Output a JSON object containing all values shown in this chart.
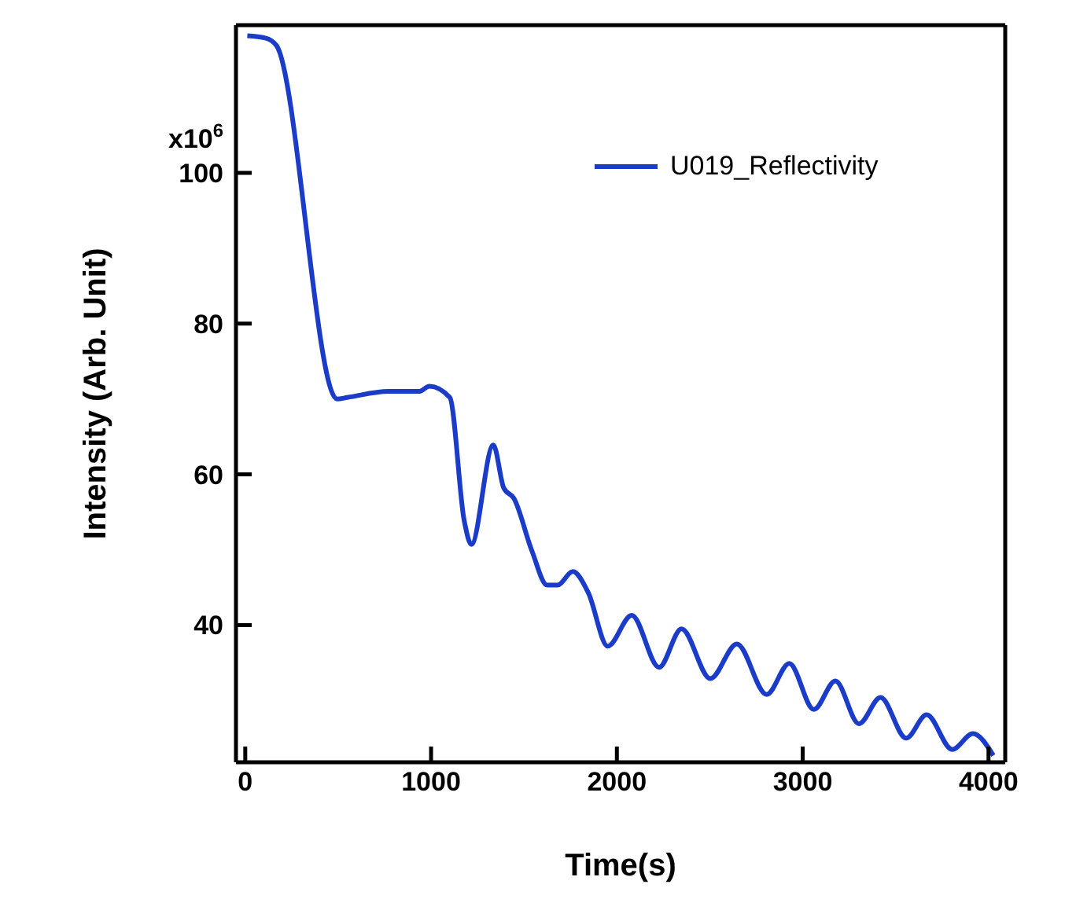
{
  "chart_data": {
    "type": "line",
    "xlabel": "Time(s)",
    "ylabel": "Intensity (Arb. Unit)",
    "annotations": [
      "x10$^{6}$"
    ],
    "x": [
      11,
      108,
      168,
      494,
      549,
      770,
      935,
      991,
      1101,
      1178,
      1217,
      1335,
      1391,
      1446,
      1542,
      1625,
      1680,
      1763,
      1846,
      1951,
      2080,
      2227,
      2348,
      2503,
      2646,
      2806,
      2928,
      3060,
      3176,
      3303,
      3419,
      3557,
      3667,
      3805,
      3916,
      4026
    ],
    "series": [
      {
        "name": "U019_Reflectivity",
        "color": "#1a3cc8",
        "values": [
          118.2,
          117.9,
          116.9,
          70.0,
          70.2,
          71.0,
          71.0,
          71.7,
          70.2,
          53.9,
          50.7,
          63.9,
          58.2,
          56.8,
          49.9,
          45.3,
          45.3,
          47.1,
          44.3,
          37.2,
          41.3,
          34.4,
          39.5,
          32.9,
          37.5,
          30.8,
          34.9,
          28.8,
          32.6,
          26.9,
          30.4,
          25.0,
          28.1,
          23.5,
          25.6,
          22.7
        ]
      }
    ],
    "xlim": [
      -50,
      4090
    ],
    "xticks": [
      0,
      1000,
      2000,
      3000,
      4000
    ],
    "ylim": [
      21.8,
      119.6
    ],
    "yticks": [
      40,
      60,
      80,
      100
    ],
    "grid": false,
    "legend": "top right",
    "marker": "none",
    "line_style": "solid"
  }
}
